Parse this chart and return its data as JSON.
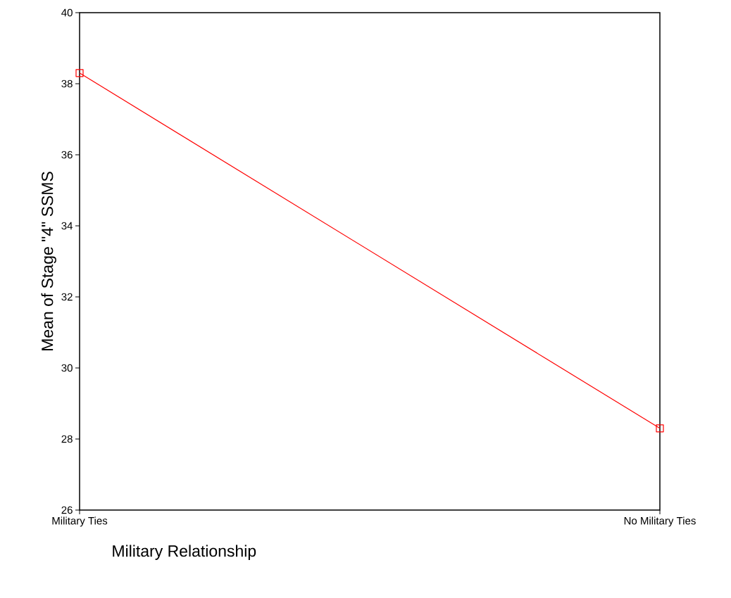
{
  "chart_data": {
    "type": "line",
    "xlabel": "Military Relationship",
    "ylabel": "Mean of Stage \"4\" SSMS",
    "categories": [
      "Military Ties",
      "No Military Ties"
    ],
    "series": [
      {
        "color": "#ff0000",
        "values": [
          38.3,
          28.3
        ]
      }
    ],
    "ylim": [
      26,
      40
    ],
    "yticks": [
      26,
      28,
      30,
      32,
      34,
      36,
      38,
      40
    ],
    "marker": "square",
    "line_style": "solid"
  }
}
